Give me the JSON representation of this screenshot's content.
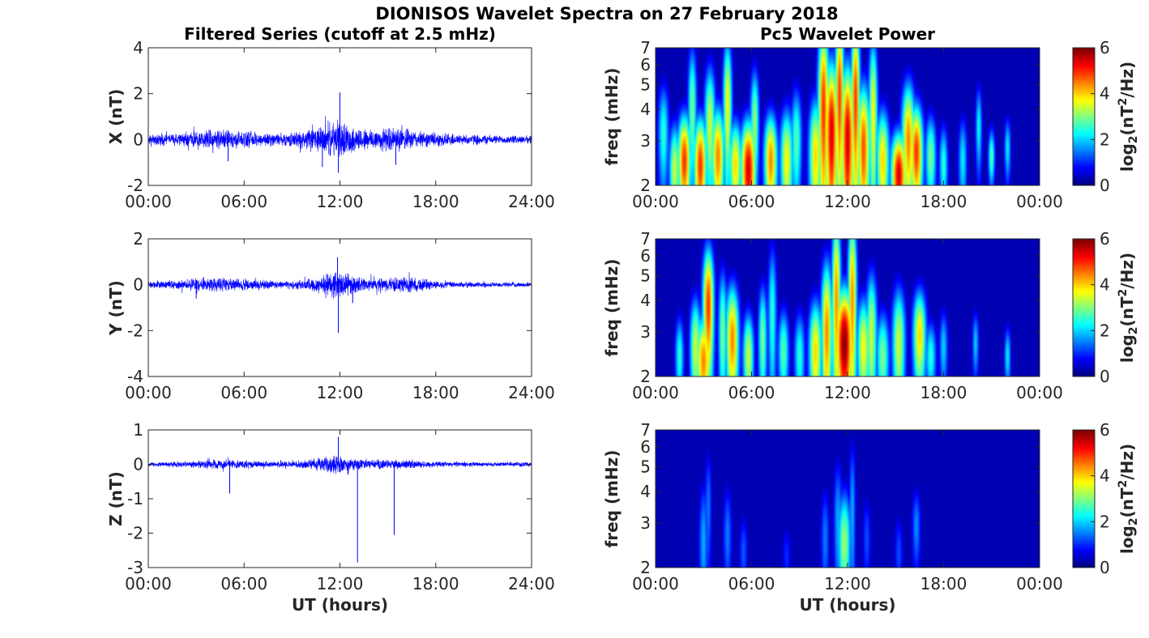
{
  "figure": {
    "suptitle": "DIONISOS Wavelet Spectra on 27 February 2018"
  },
  "chart_data": [
    {
      "type": "line",
      "title": "Filtered Series (cutoff at 2.5 mHz)",
      "xlabel": "",
      "ylabel": "X (nT)",
      "xlim": [
        0,
        24
      ],
      "ylim": [
        -2,
        4
      ],
      "xticks": [
        "00:00",
        "06:00",
        "12:00",
        "18:00",
        "24:00"
      ],
      "yticks": [
        "-2",
        "0",
        "2",
        "4"
      ],
      "ytick_values": [
        -2,
        0,
        2,
        4
      ],
      "line_color": "#0000ff",
      "envelope": {
        "x": [
          0,
          1,
          2,
          3,
          4,
          5,
          6,
          7,
          8,
          9,
          10,
          11,
          11.7,
          12,
          12.3,
          13,
          14,
          15,
          16,
          17,
          18,
          19,
          20,
          21,
          22,
          23,
          24
        ],
        "amplitude": [
          0.25,
          0.3,
          0.3,
          0.4,
          0.5,
          0.45,
          0.4,
          0.35,
          0.3,
          0.35,
          0.5,
          0.7,
          0.9,
          0.9,
          0.8,
          0.6,
          0.55,
          0.6,
          0.55,
          0.4,
          0.35,
          0.3,
          0.25,
          0.25,
          0.2,
          0.2,
          0.2
        ]
      },
      "spikes": [
        {
          "x": 12.0,
          "y": 2.05
        },
        {
          "x": 11.9,
          "y": -1.45
        },
        {
          "x": 5.0,
          "y": -0.95
        },
        {
          "x": 15.5,
          "y": -1.1
        },
        {
          "x": 10.9,
          "y": -1.2
        }
      ]
    },
    {
      "type": "heatmap",
      "title": "Pc5 Wavelet Power",
      "xlabel": "",
      "ylabel": "freq (mHz)",
      "xlim": [
        0,
        24
      ],
      "ylim": [
        2,
        7
      ],
      "yscale": "log",
      "xticks": [
        "00:00",
        "06:00",
        "12:00",
        "18:00",
        "00:00"
      ],
      "yticks": [
        "2",
        "3",
        "4",
        "5",
        "6",
        "7"
      ],
      "ytick_values": [
        2,
        3,
        4,
        5,
        6,
        7
      ],
      "colorbar": {
        "label": "log2(nT²/Hz)",
        "label_main": "log",
        "label_sub": "2",
        "label_rest": "(nT",
        "label_sup": "2",
        "label_end": "/Hz)",
        "ticks": [
          "0",
          "2",
          "4",
          "6"
        ],
        "tick_values": [
          0,
          2,
          4,
          6
        ],
        "range": [
          0,
          6
        ],
        "colormap": "jet"
      },
      "blobs": [
        {
          "t": 0.5,
          "f": 3.2,
          "p": 2.5,
          "w": 0.25,
          "h": 1.2
        },
        {
          "t": 1.2,
          "f": 2.3,
          "p": 3.5,
          "w": 0.25,
          "h": 0.8
        },
        {
          "t": 1.8,
          "f": 2.5,
          "p": 5.0,
          "w": 0.3,
          "h": 0.9
        },
        {
          "t": 2.3,
          "f": 4.0,
          "p": 3.0,
          "w": 0.2,
          "h": 2.0
        },
        {
          "t": 2.8,
          "f": 2.4,
          "p": 5.0,
          "w": 0.3,
          "h": 0.9
        },
        {
          "t": 3.4,
          "f": 3.5,
          "p": 3.5,
          "w": 0.25,
          "h": 1.6
        },
        {
          "t": 3.9,
          "f": 2.6,
          "p": 4.5,
          "w": 0.3,
          "h": 1.0
        },
        {
          "t": 4.5,
          "f": 4.2,
          "p": 3.8,
          "w": 0.2,
          "h": 2.2
        },
        {
          "t": 5.0,
          "f": 2.4,
          "p": 4.0,
          "w": 0.3,
          "h": 0.8
        },
        {
          "t": 5.8,
          "f": 2.3,
          "p": 5.5,
          "w": 0.35,
          "h": 0.9
        },
        {
          "t": 6.2,
          "f": 3.5,
          "p": 3.2,
          "w": 0.2,
          "h": 1.5
        },
        {
          "t": 7.2,
          "f": 2.5,
          "p": 4.5,
          "w": 0.3,
          "h": 0.9
        },
        {
          "t": 8.2,
          "f": 2.5,
          "p": 3.8,
          "w": 0.3,
          "h": 1.0
        },
        {
          "t": 8.8,
          "f": 3.0,
          "p": 2.8,
          "w": 0.25,
          "h": 1.2
        },
        {
          "t": 10.0,
          "f": 2.6,
          "p": 4.0,
          "w": 0.3,
          "h": 1.2
        },
        {
          "t": 10.5,
          "f": 4.0,
          "p": 5.0,
          "w": 0.25,
          "h": 3.0
        },
        {
          "t": 11.0,
          "f": 3.2,
          "p": 5.5,
          "w": 0.3,
          "h": 2.0
        },
        {
          "t": 11.5,
          "f": 4.5,
          "p": 5.0,
          "w": 0.2,
          "h": 3.0
        },
        {
          "t": 12.0,
          "f": 3.0,
          "p": 5.5,
          "w": 0.3,
          "h": 2.0
        },
        {
          "t": 12.5,
          "f": 4.3,
          "p": 5.0,
          "w": 0.2,
          "h": 3.0
        },
        {
          "t": 13.0,
          "f": 2.8,
          "p": 4.8,
          "w": 0.3,
          "h": 1.5
        },
        {
          "t": 13.6,
          "f": 3.8,
          "p": 3.8,
          "w": 0.2,
          "h": 2.5
        },
        {
          "t": 14.2,
          "f": 2.5,
          "p": 4.0,
          "w": 0.3,
          "h": 1.0
        },
        {
          "t": 15.2,
          "f": 2.2,
          "p": 5.5,
          "w": 0.35,
          "h": 0.7
        },
        {
          "t": 15.8,
          "f": 3.0,
          "p": 4.5,
          "w": 0.3,
          "h": 1.4
        },
        {
          "t": 16.3,
          "f": 2.7,
          "p": 5.0,
          "w": 0.3,
          "h": 1.0
        },
        {
          "t": 17.2,
          "f": 2.6,
          "p": 3.0,
          "w": 0.25,
          "h": 0.8
        },
        {
          "t": 18.0,
          "f": 2.4,
          "p": 2.5,
          "w": 0.2,
          "h": 0.7
        },
        {
          "t": 19.2,
          "f": 2.5,
          "p": 2.2,
          "w": 0.2,
          "h": 0.8
        },
        {
          "t": 20.2,
          "f": 3.4,
          "p": 2.3,
          "w": 0.15,
          "h": 1.0
        },
        {
          "t": 21.0,
          "f": 2.6,
          "p": 2.8,
          "w": 0.15,
          "h": 0.5
        },
        {
          "t": 22.0,
          "f": 2.8,
          "p": 2.2,
          "w": 0.15,
          "h": 0.6
        }
      ]
    },
    {
      "type": "line",
      "title": "",
      "xlabel": "",
      "ylabel": "Y (nT)",
      "xlim": [
        0,
        24
      ],
      "ylim": [
        -4,
        2
      ],
      "xticks": [
        "00:00",
        "06:00",
        "12:00",
        "18:00",
        "24:00"
      ],
      "yticks": [
        "-4",
        "-2",
        "0",
        "2"
      ],
      "ytick_values": [
        -4,
        -2,
        0,
        2
      ],
      "line_color": "#0000ff",
      "envelope": {
        "x": [
          0,
          1,
          2,
          3,
          4,
          5,
          6,
          7,
          8,
          9,
          10,
          11,
          11.7,
          12,
          12.3,
          13,
          14,
          15,
          16,
          17,
          18,
          19,
          20,
          21,
          22,
          23,
          24
        ],
        "amplitude": [
          0.15,
          0.2,
          0.25,
          0.3,
          0.35,
          0.35,
          0.3,
          0.25,
          0.2,
          0.2,
          0.3,
          0.5,
          0.7,
          0.75,
          0.6,
          0.4,
          0.3,
          0.35,
          0.4,
          0.35,
          0.2,
          0.15,
          0.15,
          0.12,
          0.12,
          0.12,
          0.12
        ]
      },
      "spikes": [
        {
          "x": 11.9,
          "y": -2.1
        },
        {
          "x": 11.85,
          "y": 1.2
        },
        {
          "x": 3.0,
          "y": -0.6
        },
        {
          "x": 12.8,
          "y": -0.8
        }
      ]
    },
    {
      "type": "heatmap",
      "title": "",
      "xlabel": "",
      "ylabel": "freq (mHz)",
      "xlim": [
        0,
        24
      ],
      "ylim": [
        2,
        7
      ],
      "yscale": "log",
      "xticks": [
        "00:00",
        "06:00",
        "12:00",
        "18:00",
        "00:00"
      ],
      "yticks": [
        "2",
        "3",
        "4",
        "5",
        "6",
        "7"
      ],
      "ytick_values": [
        2,
        3,
        4,
        5,
        6,
        7
      ],
      "colorbar": {
        "label": "log2(nT²/Hz)",
        "label_main": "log",
        "label_sub": "2",
        "label_rest": "(nT",
        "label_sup": "2",
        "label_end": "/Hz)",
        "ticks": [
          "0",
          "2",
          "4",
          "6"
        ],
        "tick_values": [
          0,
          2,
          4,
          6
        ],
        "range": [
          0,
          6
        ],
        "colormap": "jet"
      },
      "blobs": [
        {
          "t": 1.5,
          "f": 2.4,
          "p": 2.5,
          "w": 0.2,
          "h": 0.7
        },
        {
          "t": 2.5,
          "f": 2.6,
          "p": 3.5,
          "w": 0.25,
          "h": 1.0
        },
        {
          "t": 3.0,
          "f": 2.3,
          "p": 4.5,
          "w": 0.35,
          "h": 0.8
        },
        {
          "t": 3.3,
          "f": 3.8,
          "p": 5.0,
          "w": 0.25,
          "h": 1.8
        },
        {
          "t": 4.2,
          "f": 3.0,
          "p": 3.0,
          "w": 0.2,
          "h": 1.5
        },
        {
          "t": 4.8,
          "f": 2.8,
          "p": 4.5,
          "w": 0.3,
          "h": 1.2
        },
        {
          "t": 5.8,
          "f": 2.4,
          "p": 3.5,
          "w": 0.25,
          "h": 0.8
        },
        {
          "t": 6.7,
          "f": 2.8,
          "p": 3.0,
          "w": 0.2,
          "h": 1.2
        },
        {
          "t": 7.3,
          "f": 3.5,
          "p": 2.5,
          "w": 0.2,
          "h": 2.0
        },
        {
          "t": 8.0,
          "f": 2.5,
          "p": 2.8,
          "w": 0.25,
          "h": 0.8
        },
        {
          "t": 9.0,
          "f": 2.4,
          "p": 2.5,
          "w": 0.25,
          "h": 0.8
        },
        {
          "t": 10.0,
          "f": 2.5,
          "p": 4.0,
          "w": 0.3,
          "h": 1.0
        },
        {
          "t": 10.7,
          "f": 3.0,
          "p": 4.5,
          "w": 0.25,
          "h": 1.8
        },
        {
          "t": 11.3,
          "f": 4.0,
          "p": 4.5,
          "w": 0.2,
          "h": 3.0
        },
        {
          "t": 11.8,
          "f": 2.7,
          "p": 6.0,
          "w": 0.4,
          "h": 1.2
        },
        {
          "t": 12.3,
          "f": 4.0,
          "p": 4.5,
          "w": 0.2,
          "h": 3.0
        },
        {
          "t": 13.0,
          "f": 2.6,
          "p": 3.8,
          "w": 0.3,
          "h": 1.0
        },
        {
          "t": 13.5,
          "f": 2.9,
          "p": 3.5,
          "w": 0.25,
          "h": 1.5
        },
        {
          "t": 14.2,
          "f": 2.4,
          "p": 3.0,
          "w": 0.3,
          "h": 0.8
        },
        {
          "t": 15.2,
          "f": 2.7,
          "p": 3.5,
          "w": 0.3,
          "h": 1.2
        },
        {
          "t": 16.5,
          "f": 2.9,
          "p": 4.0,
          "w": 0.3,
          "h": 1.0
        },
        {
          "t": 17.2,
          "f": 2.4,
          "p": 2.5,
          "w": 0.25,
          "h": 0.6
        },
        {
          "t": 18.0,
          "f": 2.6,
          "p": 2.0,
          "w": 0.2,
          "h": 0.7
        },
        {
          "t": 20.0,
          "f": 2.7,
          "p": 2.0,
          "w": 0.15,
          "h": 0.6
        },
        {
          "t": 22.0,
          "f": 2.4,
          "p": 2.2,
          "w": 0.15,
          "h": 0.5
        }
      ]
    },
    {
      "type": "line",
      "title": "",
      "xlabel": "UT (hours)",
      "ylabel": "Z (nT)",
      "xlim": [
        0,
        24
      ],
      "ylim": [
        -3,
        1
      ],
      "xticks": [
        "00:00",
        "06:00",
        "12:00",
        "18:00",
        "24:00"
      ],
      "yticks": [
        "-3",
        "-2",
        "-1",
        "0",
        "1"
      ],
      "ytick_values": [
        -3,
        -2,
        -1,
        0,
        1
      ],
      "line_color": "#0000ff",
      "envelope": {
        "x": [
          0,
          1,
          2,
          3,
          4,
          5,
          6,
          7,
          8,
          9,
          10,
          11,
          11.7,
          12,
          12.3,
          13,
          14,
          15,
          16,
          17,
          18,
          19,
          20,
          21,
          22,
          23,
          24
        ],
        "amplitude": [
          0.07,
          0.08,
          0.1,
          0.12,
          0.15,
          0.15,
          0.13,
          0.1,
          0.1,
          0.1,
          0.15,
          0.25,
          0.3,
          0.3,
          0.25,
          0.18,
          0.15,
          0.15,
          0.15,
          0.12,
          0.1,
          0.08,
          0.08,
          0.07,
          0.07,
          0.07,
          0.07
        ]
      },
      "spikes": [
        {
          "x": 13.1,
          "y": -2.85
        },
        {
          "x": 15.4,
          "y": -2.05
        },
        {
          "x": 5.1,
          "y": -0.85
        },
        {
          "x": 11.9,
          "y": 0.8
        },
        {
          "x": 12.5,
          "y": -0.3
        }
      ]
    },
    {
      "type": "heatmap",
      "title": "",
      "xlabel": "UT (hours)",
      "ylabel": "freq (mHz)",
      "xlim": [
        0,
        24
      ],
      "ylim": [
        2,
        7
      ],
      "yscale": "log",
      "xticks": [
        "00:00",
        "06:00",
        "12:00",
        "18:00",
        "00:00"
      ],
      "yticks": [
        "2",
        "3",
        "4",
        "5",
        "6",
        "7"
      ],
      "ytick_values": [
        2,
        3,
        4,
        5,
        6,
        7
      ],
      "colorbar": {
        "label": "log2(nT²/Hz)",
        "label_main": "log",
        "label_sub": "2",
        "label_rest": "(nT",
        "label_sup": "2",
        "label_end": "/Hz)",
        "ticks": [
          "0",
          "2",
          "4",
          "6"
        ],
        "tick_values": [
          0,
          2,
          4,
          6
        ],
        "range": [
          0,
          6
        ],
        "colormap": "jet"
      },
      "blobs": [
        {
          "t": 3.0,
          "f": 2.5,
          "p": 1.8,
          "w": 0.2,
          "h": 1.2
        },
        {
          "t": 3.3,
          "f": 3.5,
          "p": 1.5,
          "w": 0.15,
          "h": 1.5
        },
        {
          "t": 4.5,
          "f": 2.7,
          "p": 1.5,
          "w": 0.2,
          "h": 1.0
        },
        {
          "t": 5.5,
          "f": 2.3,
          "p": 1.3,
          "w": 0.2,
          "h": 0.6
        },
        {
          "t": 8.2,
          "f": 2.2,
          "p": 1.0,
          "w": 0.2,
          "h": 0.5
        },
        {
          "t": 10.6,
          "f": 2.6,
          "p": 1.5,
          "w": 0.2,
          "h": 1.0
        },
        {
          "t": 11.4,
          "f": 3.0,
          "p": 1.8,
          "w": 0.2,
          "h": 1.5
        },
        {
          "t": 11.8,
          "f": 2.5,
          "p": 3.2,
          "w": 0.3,
          "h": 1.0
        },
        {
          "t": 12.3,
          "f": 3.2,
          "p": 1.8,
          "w": 0.15,
          "h": 2.0
        },
        {
          "t": 13.2,
          "f": 2.6,
          "p": 1.2,
          "w": 0.2,
          "h": 0.8
        },
        {
          "t": 15.2,
          "f": 2.3,
          "p": 1.2,
          "w": 0.2,
          "h": 0.6
        },
        {
          "t": 16.3,
          "f": 2.9,
          "p": 1.6,
          "w": 0.2,
          "h": 0.8
        }
      ]
    }
  ]
}
